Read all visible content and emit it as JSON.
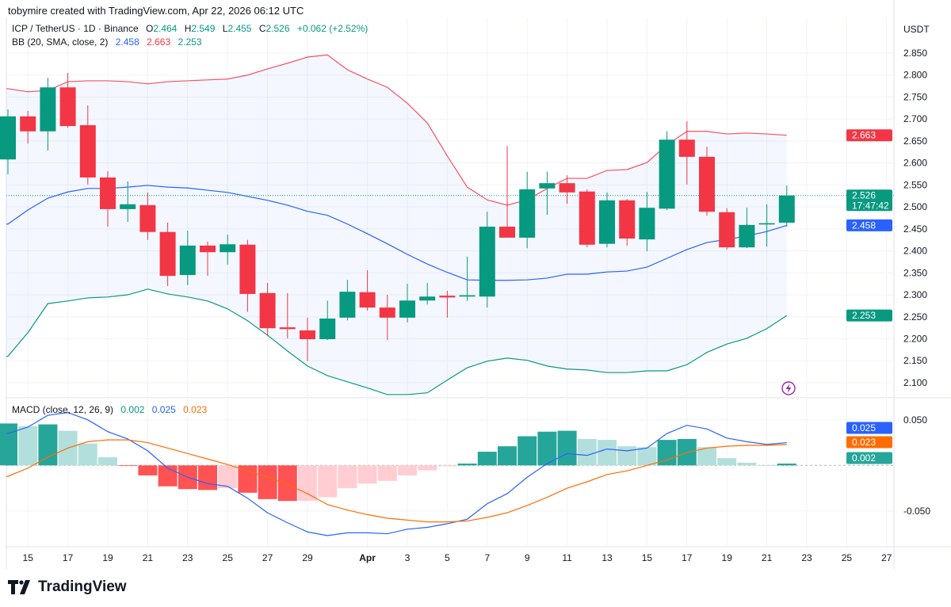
{
  "header": {
    "credit": "tobymire created with TradingView.com, Apr 22, 2026 06:12 UTC",
    "symbol": "ICP / TetherUS · 1D · Binance",
    "ohlc": {
      "o_label": "O",
      "o": "2.464",
      "h_label": "H",
      "h": "2.549",
      "l_label": "L",
      "l": "2.455",
      "c_label": "C",
      "c": "2.526",
      "change": "+0.062 (+2.52%)"
    },
    "bb": {
      "label": "BB (20, SMA, close, 2)",
      "basis": "2.458",
      "upper": "2.663",
      "lower": "2.253"
    },
    "macd": {
      "label": "MACD (close, 12, 26, 9)",
      "hist": "0.002",
      "macd": "0.025",
      "signal": "0.023"
    }
  },
  "price_axis": {
    "currency": "USDT",
    "ticks": [
      "2.850",
      "2.800",
      "2.750",
      "2.700",
      "2.650",
      "2.600",
      "2.550",
      "2.500",
      "2.450",
      "2.400",
      "2.350",
      "2.300",
      "2.250",
      "2.200",
      "2.150",
      "2.100"
    ],
    "badges": {
      "upper": "2.663",
      "last": "2.526",
      "countdown": "17:47:42",
      "basis": "2.458",
      "lower": "2.253"
    }
  },
  "macd_axis": {
    "ticks": [
      "0.050",
      "-0.050"
    ],
    "badges": {
      "macd": "0.025",
      "signal": "0.023",
      "hist": "0.002"
    }
  },
  "colors": {
    "up": "#089981",
    "down": "#f23645",
    "bb_upper": "#f7525f",
    "bb_basis": "#2962ff",
    "bb_lower": "#089981",
    "band_fill": "#2962ff",
    "macd": "#2962ff",
    "signal": "#ff6d00",
    "hist_up_strong": "#26a69a",
    "hist_up_weak": "#b2dfdb",
    "hist_down_strong": "#ff5252",
    "hist_down_weak": "#ffcdd2"
  },
  "logo": "TradingView",
  "chart_data": {
    "type": "candlestick",
    "interval": "1D",
    "time_axis_labels": [
      "15",
      "17",
      "19",
      "21",
      "23",
      "25",
      "27",
      "29",
      "Apr",
      "3",
      "5",
      "7",
      "9",
      "11",
      "13",
      "15",
      "17",
      "19",
      "21",
      "23",
      "25",
      "27"
    ],
    "ylim": [
      2.08,
      2.87
    ],
    "grid": true,
    "candles": [
      [
        "Mar 14",
        2.608,
        2.722,
        2.574,
        2.706
      ],
      [
        "Mar 15",
        2.706,
        2.718,
        2.644,
        2.672
      ],
      [
        "Mar 16",
        2.672,
        2.794,
        2.628,
        2.772
      ],
      [
        "Mar 17",
        2.772,
        2.805,
        2.68,
        2.684
      ],
      [
        "Mar 18",
        2.686,
        2.731,
        2.551,
        2.567
      ],
      [
        "Mar 19",
        2.567,
        2.581,
        2.455,
        2.495
      ],
      [
        "Mar 20",
        2.495,
        2.558,
        2.466,
        2.506
      ],
      [
        "Mar 21",
        2.504,
        2.533,
        2.425,
        2.443
      ],
      [
        "Mar 22",
        2.443,
        2.464,
        2.32,
        2.343
      ],
      [
        "Mar 23",
        2.345,
        2.446,
        2.322,
        2.412
      ],
      [
        "Mar 24",
        2.412,
        2.421,
        2.343,
        2.397
      ],
      [
        "Mar 25",
        2.397,
        2.437,
        2.369,
        2.415
      ],
      [
        "Mar 26",
        2.414,
        2.425,
        2.261,
        2.302
      ],
      [
        "Mar 27",
        2.304,
        2.327,
        2.206,
        2.224
      ],
      [
        "Mar 28",
        2.226,
        2.304,
        2.201,
        2.222
      ],
      [
        "Mar 29",
        2.219,
        2.248,
        2.149,
        2.199
      ],
      [
        "Mar 30",
        2.199,
        2.287,
        2.197,
        2.246
      ],
      [
        "Mar 31",
        2.248,
        2.334,
        2.242,
        2.307
      ],
      [
        "Apr 1",
        2.306,
        2.356,
        2.264,
        2.271
      ],
      [
        "Apr 2",
        2.271,
        2.3,
        2.197,
        2.248
      ],
      [
        "Apr 3",
        2.248,
        2.325,
        2.237,
        2.287
      ],
      [
        "Apr 4",
        2.287,
        2.327,
        2.278,
        2.296
      ],
      [
        "Apr 5",
        2.298,
        2.309,
        2.248,
        2.294
      ],
      [
        "Apr 6",
        2.296,
        2.387,
        2.286,
        2.299
      ],
      [
        "Apr 7",
        2.296,
        2.489,
        2.271,
        2.455
      ],
      [
        "Apr 8",
        2.455,
        2.639,
        2.43,
        2.43
      ],
      [
        "Apr 9",
        2.43,
        2.58,
        2.406,
        2.54
      ],
      [
        "Apr 10",
        2.542,
        2.58,
        2.482,
        2.554
      ],
      [
        "Apr 11",
        2.554,
        2.572,
        2.507,
        2.533
      ],
      [
        "Apr 12",
        2.535,
        2.54,
        2.408,
        2.414
      ],
      [
        "Apr 13",
        2.416,
        2.533,
        2.408,
        2.515
      ],
      [
        "Apr 14",
        2.515,
        2.518,
        2.412,
        2.428
      ],
      [
        "Apr 15",
        2.426,
        2.534,
        2.399,
        2.498
      ],
      [
        "Apr 16",
        2.496,
        2.672,
        2.493,
        2.653
      ],
      [
        "Apr 17",
        2.653,
        2.695,
        2.551,
        2.614
      ],
      [
        "Apr 18",
        2.614,
        2.637,
        2.48,
        2.489
      ],
      [
        "Apr 19",
        2.488,
        2.497,
        2.403,
        2.408
      ],
      [
        "Apr 20",
        2.408,
        2.498,
        2.406,
        2.459
      ],
      [
        "Apr 21",
        2.46,
        2.506,
        2.41,
        2.463
      ],
      [
        "Apr 22",
        2.464,
        2.549,
        2.455,
        2.526
      ]
    ],
    "bb_upper": [
      2.769,
      2.762,
      2.765,
      2.785,
      2.787,
      2.787,
      2.785,
      2.78,
      2.785,
      2.787,
      2.789,
      2.791,
      2.8,
      2.814,
      2.827,
      2.841,
      2.846,
      2.812,
      2.791,
      2.772,
      2.736,
      2.691,
      2.616,
      2.545,
      2.516,
      2.504,
      2.516,
      2.542,
      2.565,
      2.565,
      2.583,
      2.585,
      2.601,
      2.641,
      2.672,
      2.672,
      2.666,
      2.668,
      2.666,
      2.663
    ],
    "bb_basis": [
      2.461,
      2.493,
      2.52,
      2.534,
      2.542,
      2.542,
      2.545,
      2.549,
      2.545,
      2.543,
      2.538,
      2.533,
      2.524,
      2.515,
      2.504,
      2.49,
      2.481,
      2.461,
      2.439,
      2.416,
      2.392,
      2.37,
      2.351,
      2.334,
      2.333,
      2.333,
      2.334,
      2.338,
      2.347,
      2.347,
      2.352,
      2.354,
      2.363,
      2.383,
      2.403,
      2.419,
      2.426,
      2.434,
      2.444,
      2.458
    ],
    "bb_lower": [
      2.16,
      2.214,
      2.28,
      2.286,
      2.293,
      2.295,
      2.3,
      2.313,
      2.302,
      2.295,
      2.286,
      2.268,
      2.241,
      2.208,
      2.172,
      2.138,
      2.116,
      2.102,
      2.088,
      2.073,
      2.073,
      2.077,
      2.106,
      2.134,
      2.149,
      2.156,
      2.151,
      2.138,
      2.131,
      2.129,
      2.123,
      2.123,
      2.127,
      2.127,
      2.141,
      2.169,
      2.188,
      2.201,
      2.223,
      2.253
    ],
    "macd_ylim": [
      -0.09,
      0.07
    ],
    "macd_hist": [
      0.046,
      0.043,
      0.045,
      0.038,
      0.024,
      0.009,
      -0.0003,
      -0.011,
      -0.023,
      -0.026,
      -0.027,
      -0.025,
      -0.03,
      -0.037,
      -0.039,
      -0.039,
      -0.035,
      -0.025,
      -0.02,
      -0.017,
      -0.011,
      -0.0055,
      -0.001,
      0.002,
      0.015,
      0.021,
      0.032,
      0.037,
      0.038,
      0.029,
      0.028,
      0.021,
      0.02,
      0.028,
      0.029,
      0.02,
      0.008,
      0.003,
      0.0003,
      0.002
    ],
    "macd_line": [
      0.035,
      0.042,
      0.055,
      0.058,
      0.05,
      0.037,
      0.029,
      0.016,
      -0.003,
      -0.013,
      -0.02,
      -0.023,
      -0.036,
      -0.052,
      -0.063,
      -0.073,
      -0.077,
      -0.074,
      -0.074,
      -0.075,
      -0.07,
      -0.068,
      -0.064,
      -0.059,
      -0.042,
      -0.031,
      -0.013,
      0.002,
      0.013,
      0.011,
      0.018,
      0.016,
      0.019,
      0.035,
      0.044,
      0.04,
      0.03,
      0.026,
      0.023,
      0.025
    ],
    "signal_line": [
      -0.012,
      -0.003,
      0.009,
      0.019,
      0.026,
      0.028,
      0.028,
      0.025,
      0.019,
      0.013,
      0.007,
      0.001,
      -0.006,
      -0.013,
      -0.021,
      -0.031,
      -0.043,
      -0.049,
      -0.054,
      -0.058,
      -0.06,
      -0.062,
      -0.062,
      -0.061,
      -0.057,
      -0.052,
      -0.044,
      -0.035,
      -0.025,
      -0.018,
      -0.01,
      -0.006,
      0.0,
      0.006,
      0.014,
      0.019,
      0.021,
      0.022,
      0.022,
      0.023
    ]
  }
}
